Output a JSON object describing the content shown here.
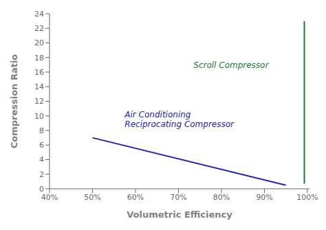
{
  "chart_data": {
    "type": "line",
    "xlabel": "Volumetric Efficiency",
    "ylabel": "Compression Ratio",
    "xlim": [
      0.4,
      1.005
    ],
    "ylim": [
      0,
      24
    ],
    "xticks": [
      {
        "value": 0.4,
        "label": "40%"
      },
      {
        "value": 0.5,
        "label": "50%"
      },
      {
        "value": 0.6,
        "label": "60%"
      },
      {
        "value": 0.7,
        "label": "70%"
      },
      {
        "value": 0.8,
        "label": "80%"
      },
      {
        "value": 0.9,
        "label": "90%"
      },
      {
        "value": 1.0,
        "label": "100%"
      }
    ],
    "yticks": [
      0,
      2,
      4,
      6,
      8,
      10,
      12,
      14,
      16,
      18,
      20,
      22,
      24
    ],
    "grid": false,
    "series": [
      {
        "color": "#2222bb",
        "x": [
          0.5,
          0.95
        ],
        "values": [
          7.0,
          0.5
        ]
      },
      {
        "color": "#1a7a3a",
        "x": [
          0.993,
          0.993
        ],
        "values": [
          0.7,
          23.0
        ]
      }
    ],
    "annotations": [
      {
        "text": "Air Conditioning\nReciprocating Compressor",
        "x": 0.575,
        "y": 8.1,
        "color": "#2222bb",
        "anchor": "bottom"
      },
      {
        "text": "Scroll Compressor",
        "x": 0.735,
        "y": 17.0,
        "color": "#1a7a3a",
        "anchor": "center"
      }
    ]
  }
}
